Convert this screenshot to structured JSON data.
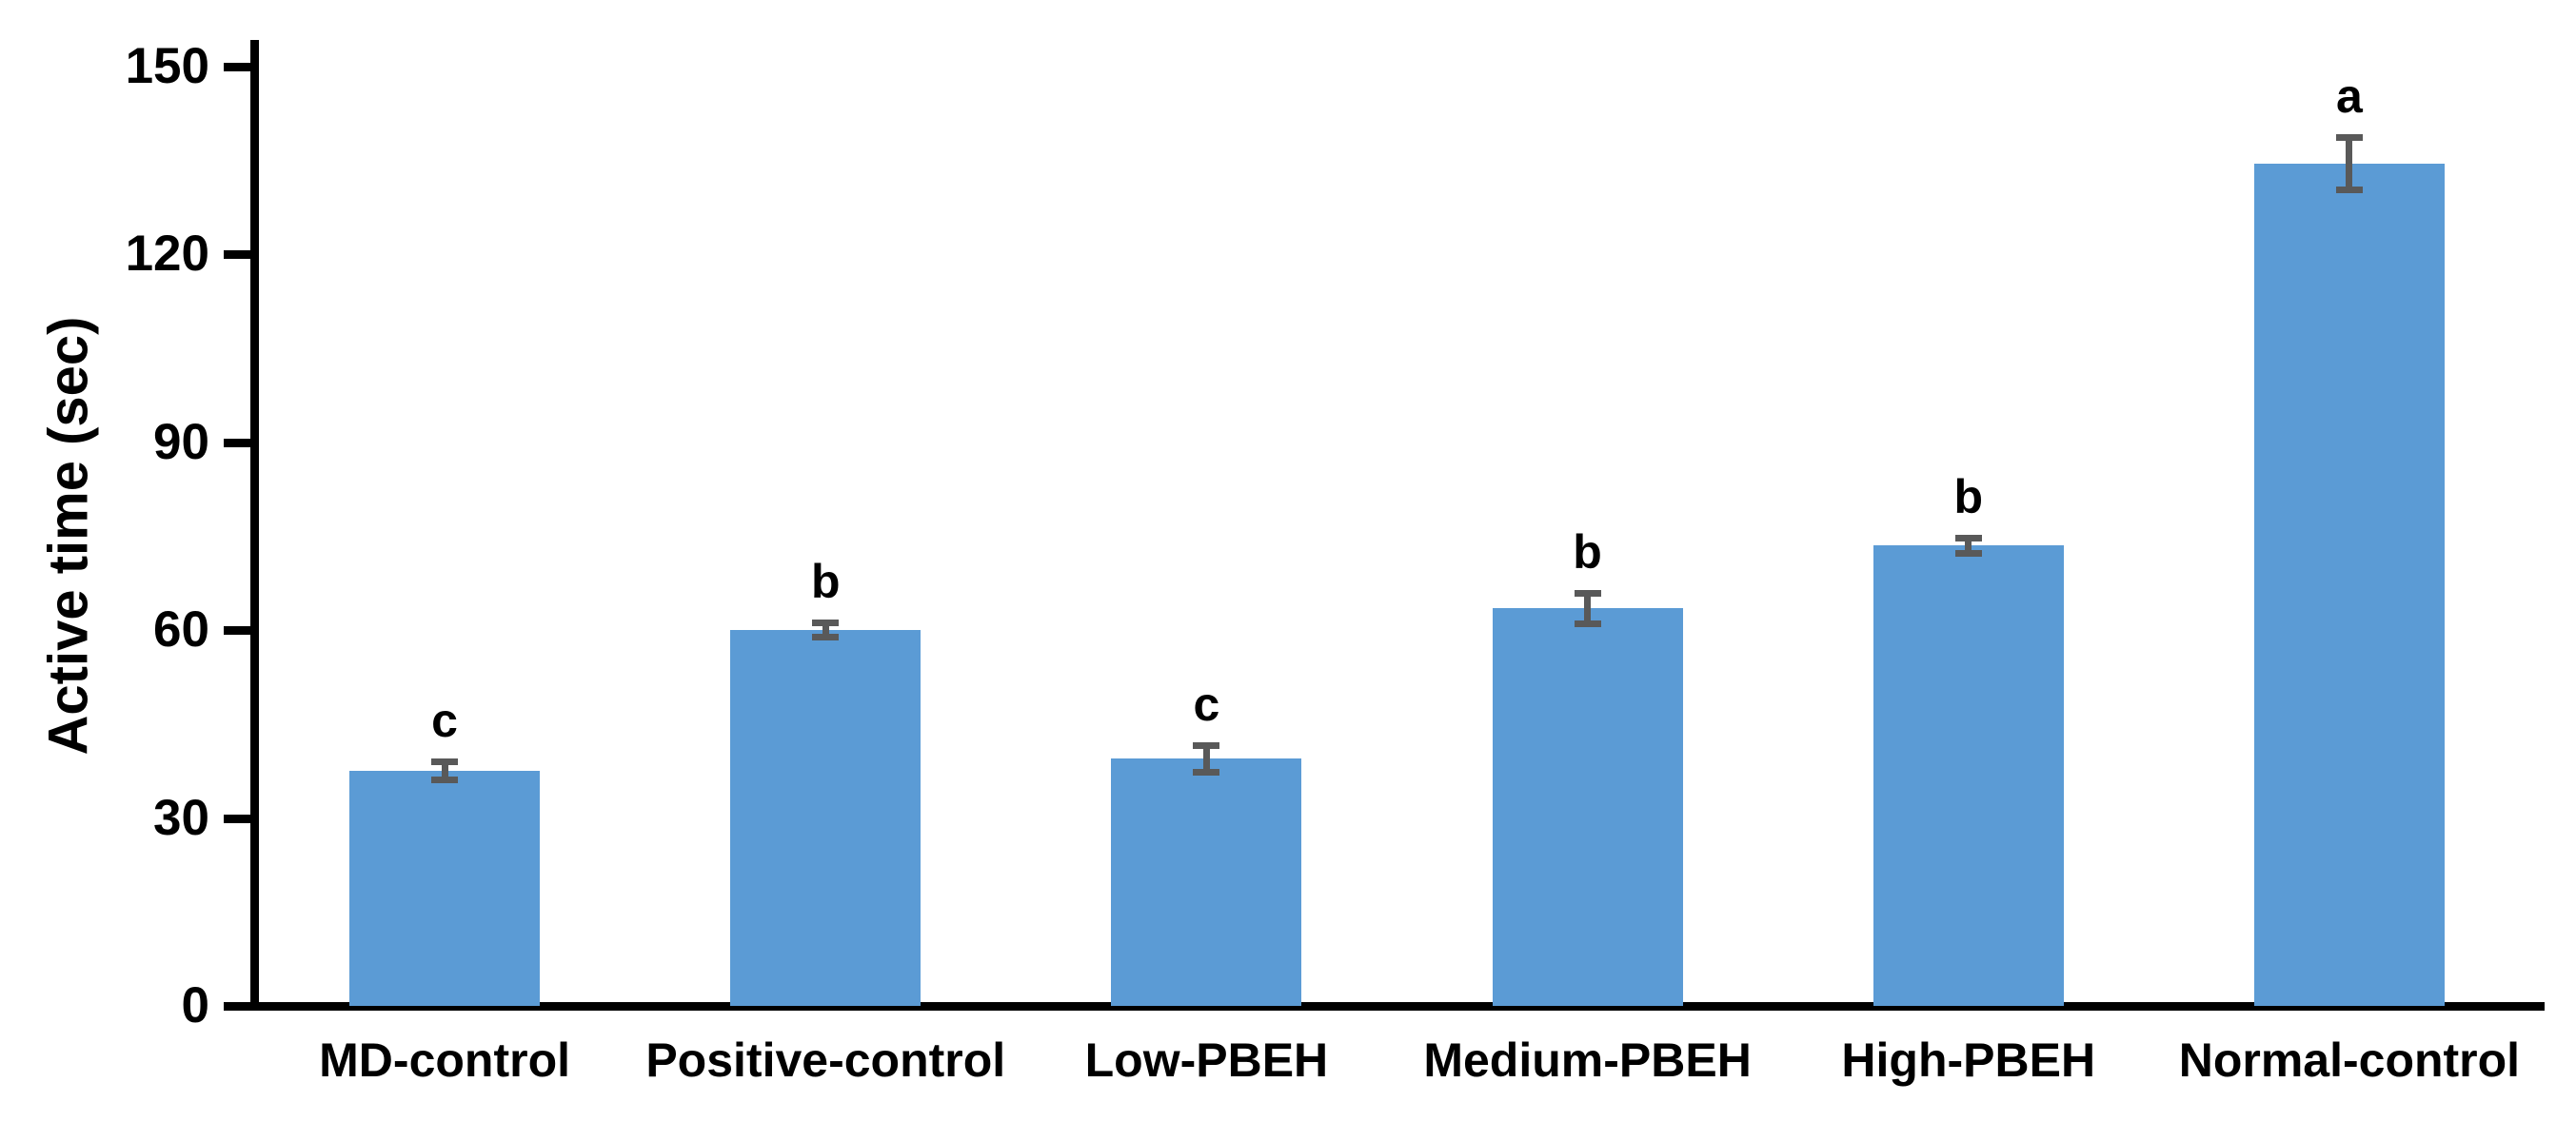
{
  "chart_data": {
    "type": "bar",
    "title": "",
    "ylabel": "Active time (sec)",
    "xlabel": "",
    "ylim": [
      0,
      150
    ],
    "yticks": [
      0,
      30,
      60,
      90,
      120,
      150
    ],
    "categories": [
      "MD-control",
      "Positive-control",
      "Low-PBEH",
      "Medium-PBEH",
      "High-PBEH",
      "Normal-control"
    ],
    "values": [
      37.5,
      60,
      39.5,
      63.5,
      73.5,
      134.5
    ],
    "errors": [
      1.5,
      1.2,
      2.2,
      2.5,
      1.3,
      4.3
    ],
    "sig_letters": [
      "c",
      "b",
      "c",
      "b",
      "b",
      "a"
    ],
    "bar_color": "#5B9BD5",
    "error_color": "#595959",
    "axis_color": "#000000",
    "grid": false,
    "legend": "none"
  }
}
